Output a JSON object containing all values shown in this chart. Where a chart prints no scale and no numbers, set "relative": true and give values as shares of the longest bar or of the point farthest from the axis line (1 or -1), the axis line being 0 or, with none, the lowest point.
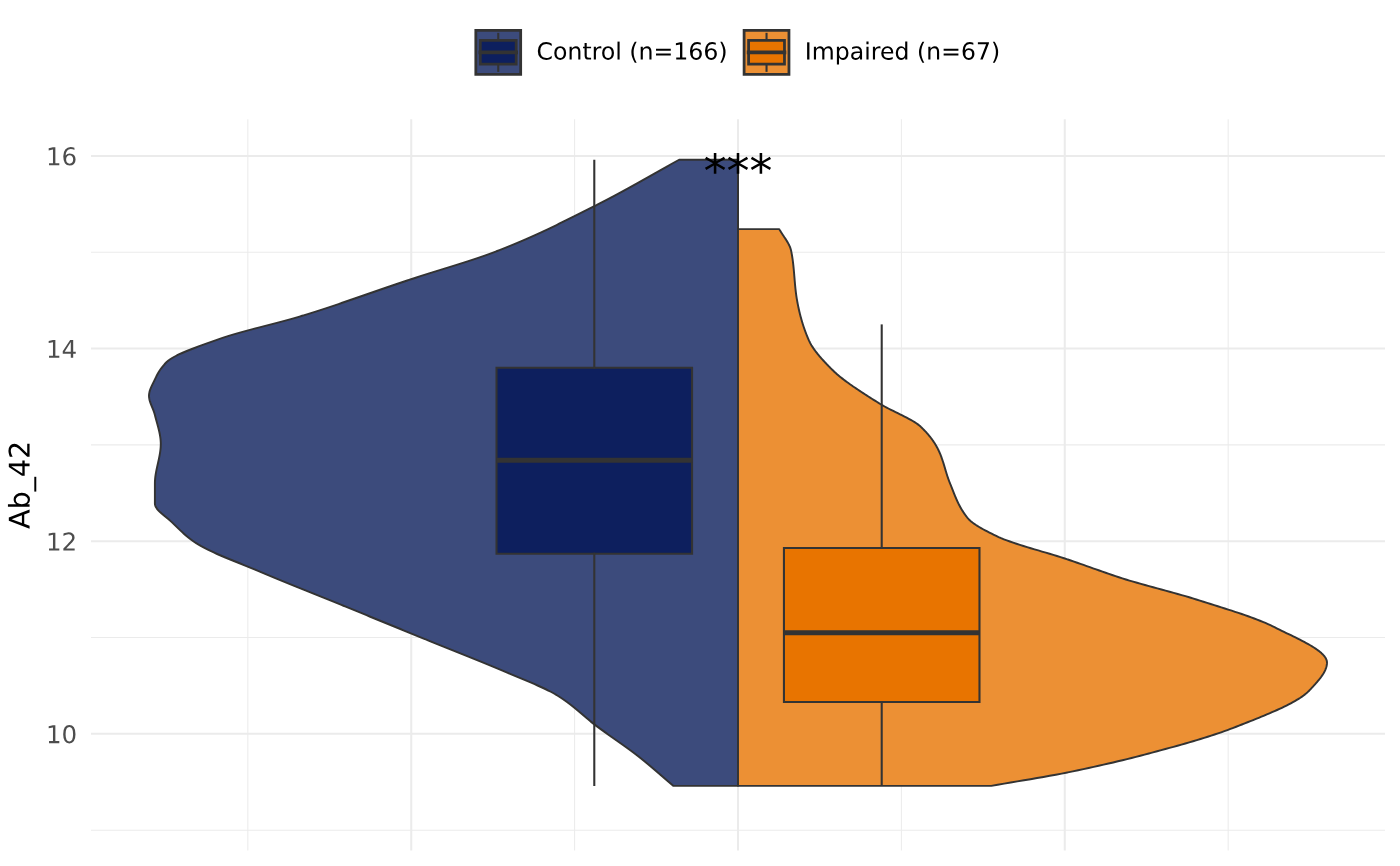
{
  "chart_data": [
    {
      "type": "area",
      "orientation": "horizontal",
      "relative": true,
      "ylim": [
        8.79,
        16.38
      ],
      "yticks": [
        {
          "value": 9,
          "label": null
        },
        10,
        {
          "value": 11,
          "label": null
        },
        12,
        {
          "value": 13,
          "label": null
        },
        14,
        {
          "value": 15,
          "label": null
        },
        16
      ],
      "tick_labels": false,
      "grid": true,
      "series": [
        {
          "color": "#3c4b7c",
          "x": [
            9.46,
            9.77,
            10.08,
            10.41,
            10.63,
            10.98,
            11.33,
            11.68,
            11.98,
            12.19,
            12.39,
            12.6,
            13.01,
            13.31,
            13.51,
            13.68,
            13.86,
            14.1,
            14.34,
            14.71,
            15.01,
            15.49,
            15.96
          ],
          "values": [
            -0.11,
            -0.17,
            -0.24,
            -0.31,
            -0.39,
            -0.53,
            -0.67,
            -0.81,
            -0.92,
            -0.96,
            -0.99,
            -0.99,
            -0.98,
            -0.99,
            -1,
            -0.99,
            -0.97,
            -0.88,
            -0.74,
            -0.56,
            -0.41,
            -0.24,
            -0.1
          ]
        },
        {
          "color": "#ec9034",
          "x": [
            9.46,
            9.6,
            9.8,
            10.06,
            10.45,
            10.74,
            11.11,
            11.41,
            11.6,
            11.81,
            12.05,
            12.24,
            12.6,
            12.95,
            13.19,
            13.43,
            13.78,
            14.09,
            14.51,
            15.02,
            15.24
          ],
          "values": [
            0.43,
            0.56,
            0.7,
            0.84,
            0.97,
            1.0,
            0.91,
            0.77,
            0.66,
            0.56,
            0.44,
            0.39,
            0.36,
            0.34,
            0.31,
            0.24,
            0.16,
            0.12,
            0.1,
            0.09,
            0.07
          ]
        }
      ]
    },
    {
      "type": "box",
      "ylabel": "Ab_42",
      "categories": [
        null
      ],
      "ylim": [
        8.79,
        16.38
      ],
      "yticks": [
        {
          "value": 9,
          "label": null
        },
        10,
        {
          "value": 11,
          "label": null
        },
        12,
        {
          "value": 13,
          "label": null
        },
        14,
        {
          "value": 15,
          "label": null
        },
        16
      ],
      "legend": "top",
      "annotations": [
        "***"
      ],
      "series": [
        {
          "name": "Control (n=166)",
          "color": "#0d1f5e",
          "boxes": [
            {
              "low": 9.47,
              "q1": 11.87,
              "median": 12.84,
              "q3": 13.8,
              "high": 15.95
            }
          ]
        },
        {
          "name": "Impaired (n=67)",
          "color": "#e87400",
          "boxes": [
            {
              "low": 9.47,
              "q1": 10.33,
              "median": 11.05,
              "q3": 11.93,
              "high": 14.24
            }
          ]
        }
      ]
    }
  ]
}
